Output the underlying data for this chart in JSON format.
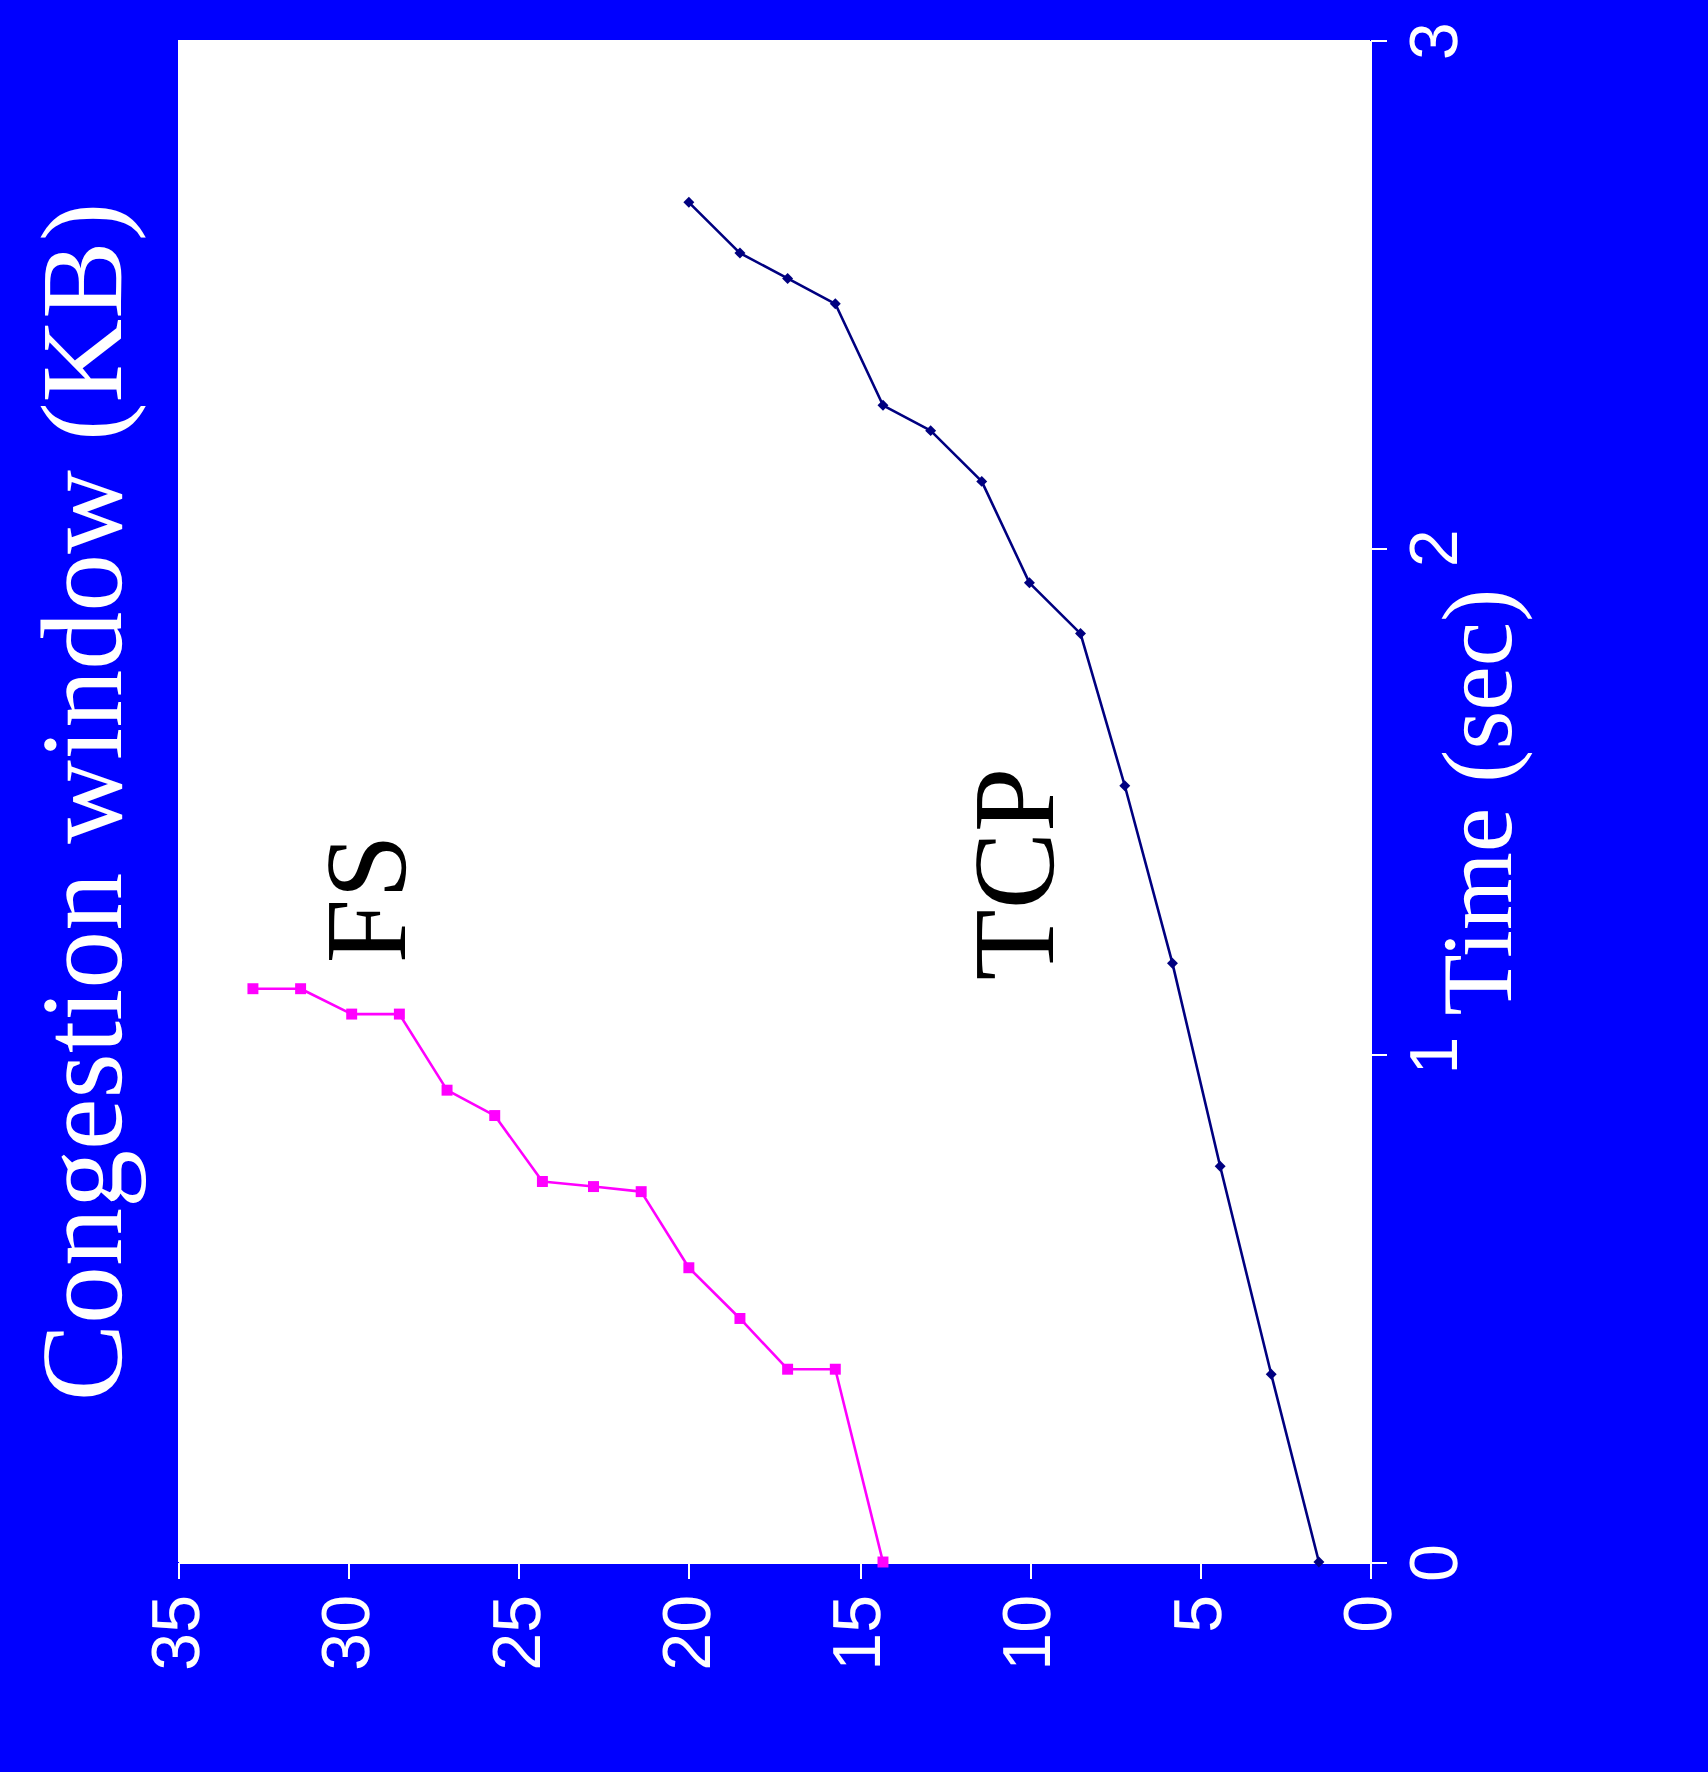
{
  "chart_data": {
    "type": "line",
    "ylabel": "Congestion window (KB)",
    "y2label": "Time (sec)",
    "xlim": [
      35,
      0
    ],
    "xticks": [
      35,
      30,
      25,
      20,
      15,
      10,
      5,
      0
    ],
    "y2lim": [
      0,
      3
    ],
    "y2ticks": [
      0,
      1,
      2,
      3
    ],
    "grid": false,
    "series": [
      {
        "name": "TCP",
        "axis": "y2",
        "color": "#000080",
        "marker": "diamond",
        "values": [
          0,
          0.37,
          0.78,
          1.18,
          1.53,
          1.83,
          1.93,
          2.13,
          2.23,
          2.28,
          2.48,
          2.53,
          2.58,
          2.68
        ],
        "x": [
          1.5,
          2.9,
          4.4,
          5.8,
          7.2,
          8.5,
          10,
          11.4,
          12.9,
          14.3,
          15.7,
          17.1,
          18.5,
          20
        ]
      },
      {
        "name": "FS",
        "axis": "y2",
        "color": "#ff00ff",
        "marker": "square",
        "values": [
          0,
          0.38,
          0.38,
          0.48,
          0.58,
          0.73,
          0.74,
          0.75,
          0.88,
          0.93,
          1.08,
          1.08,
          1.13,
          1.13
        ],
        "x": [
          14.3,
          15.7,
          17.1,
          18.5,
          20,
          21.4,
          22.8,
          24.3,
          25.7,
          27.1,
          28.5,
          29.9,
          31.4,
          32.8
        ]
      }
    ]
  }
}
